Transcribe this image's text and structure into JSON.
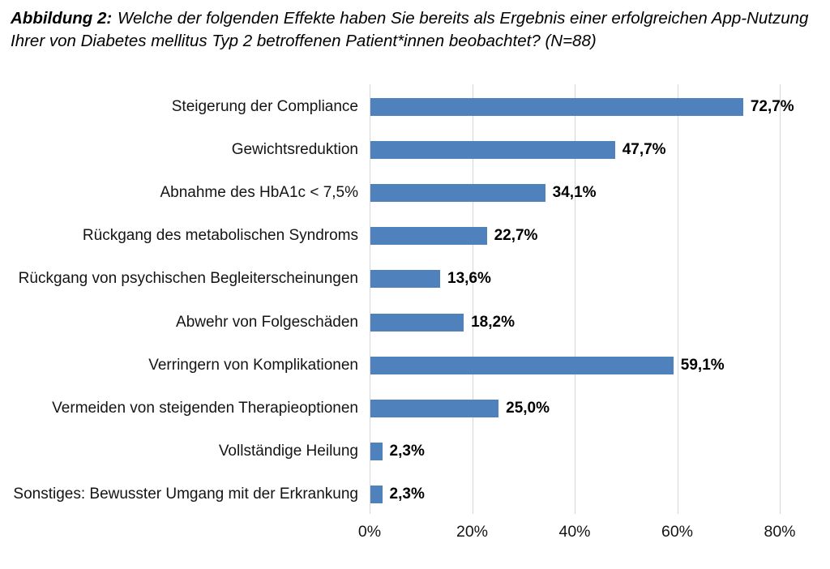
{
  "caption": {
    "label": "Abbildung 2:",
    "text": "Welche der folgenden Effekte haben Sie bereits als Ergebnis einer erfolgreichen App-Nutzung Ihrer von Diabetes mellitus Typ 2 betroffenen Patient*innen beobachtet? (N=88)"
  },
  "chart_data": {
    "type": "bar",
    "orientation": "horizontal",
    "title": "Abbildung 2: Welche der folgenden Effekte haben Sie bereits als Ergebnis einer erfolgreichen App-Nutzung Ihrer von Diabetes mellitus Typ 2 betroffenen Patient*innen beobachtet? (N=88)",
    "sample_size_label": "N=88",
    "categories": [
      "Steigerung der Compliance",
      "Gewichtsreduktion",
      "Abnahme des HbA1c < 7,5%",
      "Rückgang des metabolischen Syndroms",
      "Rückgang von psychischen Begleiterscheinungen",
      "Abwehr von Folgeschäden",
      "Verringern von Komplikationen",
      "Vermeiden von steigenden Therapieoptionen",
      "Vollständige Heilung",
      "Sonstiges: Bewusster Umgang mit der Erkrankung"
    ],
    "values": [
      72.7,
      47.7,
      34.1,
      22.7,
      13.6,
      18.2,
      59.1,
      25.0,
      2.3,
      2.3
    ],
    "value_labels": [
      "72,7%",
      "47,7%",
      "34,1%",
      "22,7%",
      "13,6%",
      "18,2%",
      "59,1%",
      "25,0%",
      "2,3%",
      "2,3%"
    ],
    "x_axis": {
      "range": [
        0,
        80
      ],
      "ticks": [
        0,
        20,
        40,
        60,
        80
      ],
      "tick_labels": [
        "0%",
        "20%",
        "40%",
        "60%",
        "80%"
      ]
    },
    "grid": "vertical",
    "legend": false,
    "bar_color": "#4f81bd",
    "gridline_color": "#d6d6d6"
  }
}
